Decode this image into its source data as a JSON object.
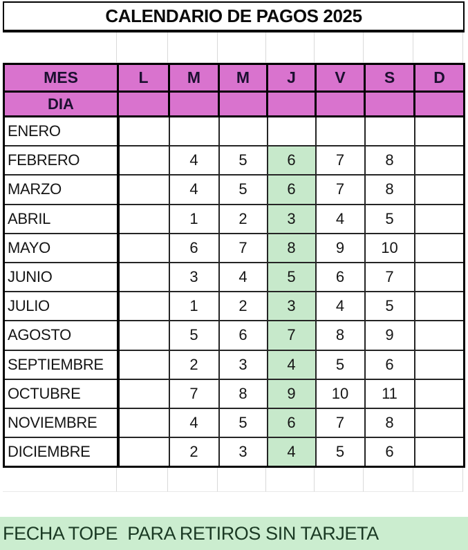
{
  "title": "CALENDARIO DE PAGOS 2025",
  "colors": {
    "header_pink": "#D973CE",
    "highlight_green": "#C7E9CB",
    "footer_green": "#CBEDCF",
    "border_black": "#000000"
  },
  "table": {
    "corner_header": "MES",
    "sub_header": "DIA",
    "day_headers": [
      "L",
      "M",
      "M",
      "J",
      "V",
      "S",
      "D"
    ],
    "rows": [
      {
        "month": "ENERO",
        "days": [
          "",
          "",
          "",
          "",
          "",
          "",
          ""
        ]
      },
      {
        "month": "FEBRERO",
        "days": [
          "",
          "4",
          "5",
          "6",
          "7",
          "8",
          ""
        ]
      },
      {
        "month": "MARZO",
        "days": [
          "",
          "4",
          "5",
          "6",
          "7",
          "8",
          ""
        ]
      },
      {
        "month": "ABRIL",
        "days": [
          "",
          "1",
          "2",
          "3",
          "4",
          "5",
          ""
        ]
      },
      {
        "month": "MAYO",
        "days": [
          "",
          "6",
          "7",
          "8",
          "9",
          "10",
          ""
        ]
      },
      {
        "month": "JUNIO",
        "days": [
          "",
          "3",
          "4",
          "5",
          "6",
          "7",
          ""
        ]
      },
      {
        "month": "JULIO",
        "days": [
          "",
          "1",
          "2",
          "3",
          "4",
          "5",
          ""
        ]
      },
      {
        "month": "AGOSTO",
        "days": [
          "",
          "5",
          "6",
          "7",
          "8",
          "9",
          ""
        ]
      },
      {
        "month": "SEPTIEMBRE",
        "days": [
          "",
          "2",
          "3",
          "4",
          "5",
          "6",
          ""
        ]
      },
      {
        "month": "OCTUBRE",
        "days": [
          "",
          "7",
          "8",
          "9",
          "10",
          "11",
          ""
        ]
      },
      {
        "month": "NOVIEMBRE",
        "days": [
          "",
          "4",
          "5",
          "6",
          "7",
          "8",
          ""
        ]
      },
      {
        "month": "DICIEMBRE",
        "days": [
          "",
          "2",
          "3",
          "4",
          "5",
          "6",
          ""
        ]
      }
    ]
  },
  "footer": {
    "note": "FECHA TOPE  PARA RETIROS SIN TARJETA"
  }
}
